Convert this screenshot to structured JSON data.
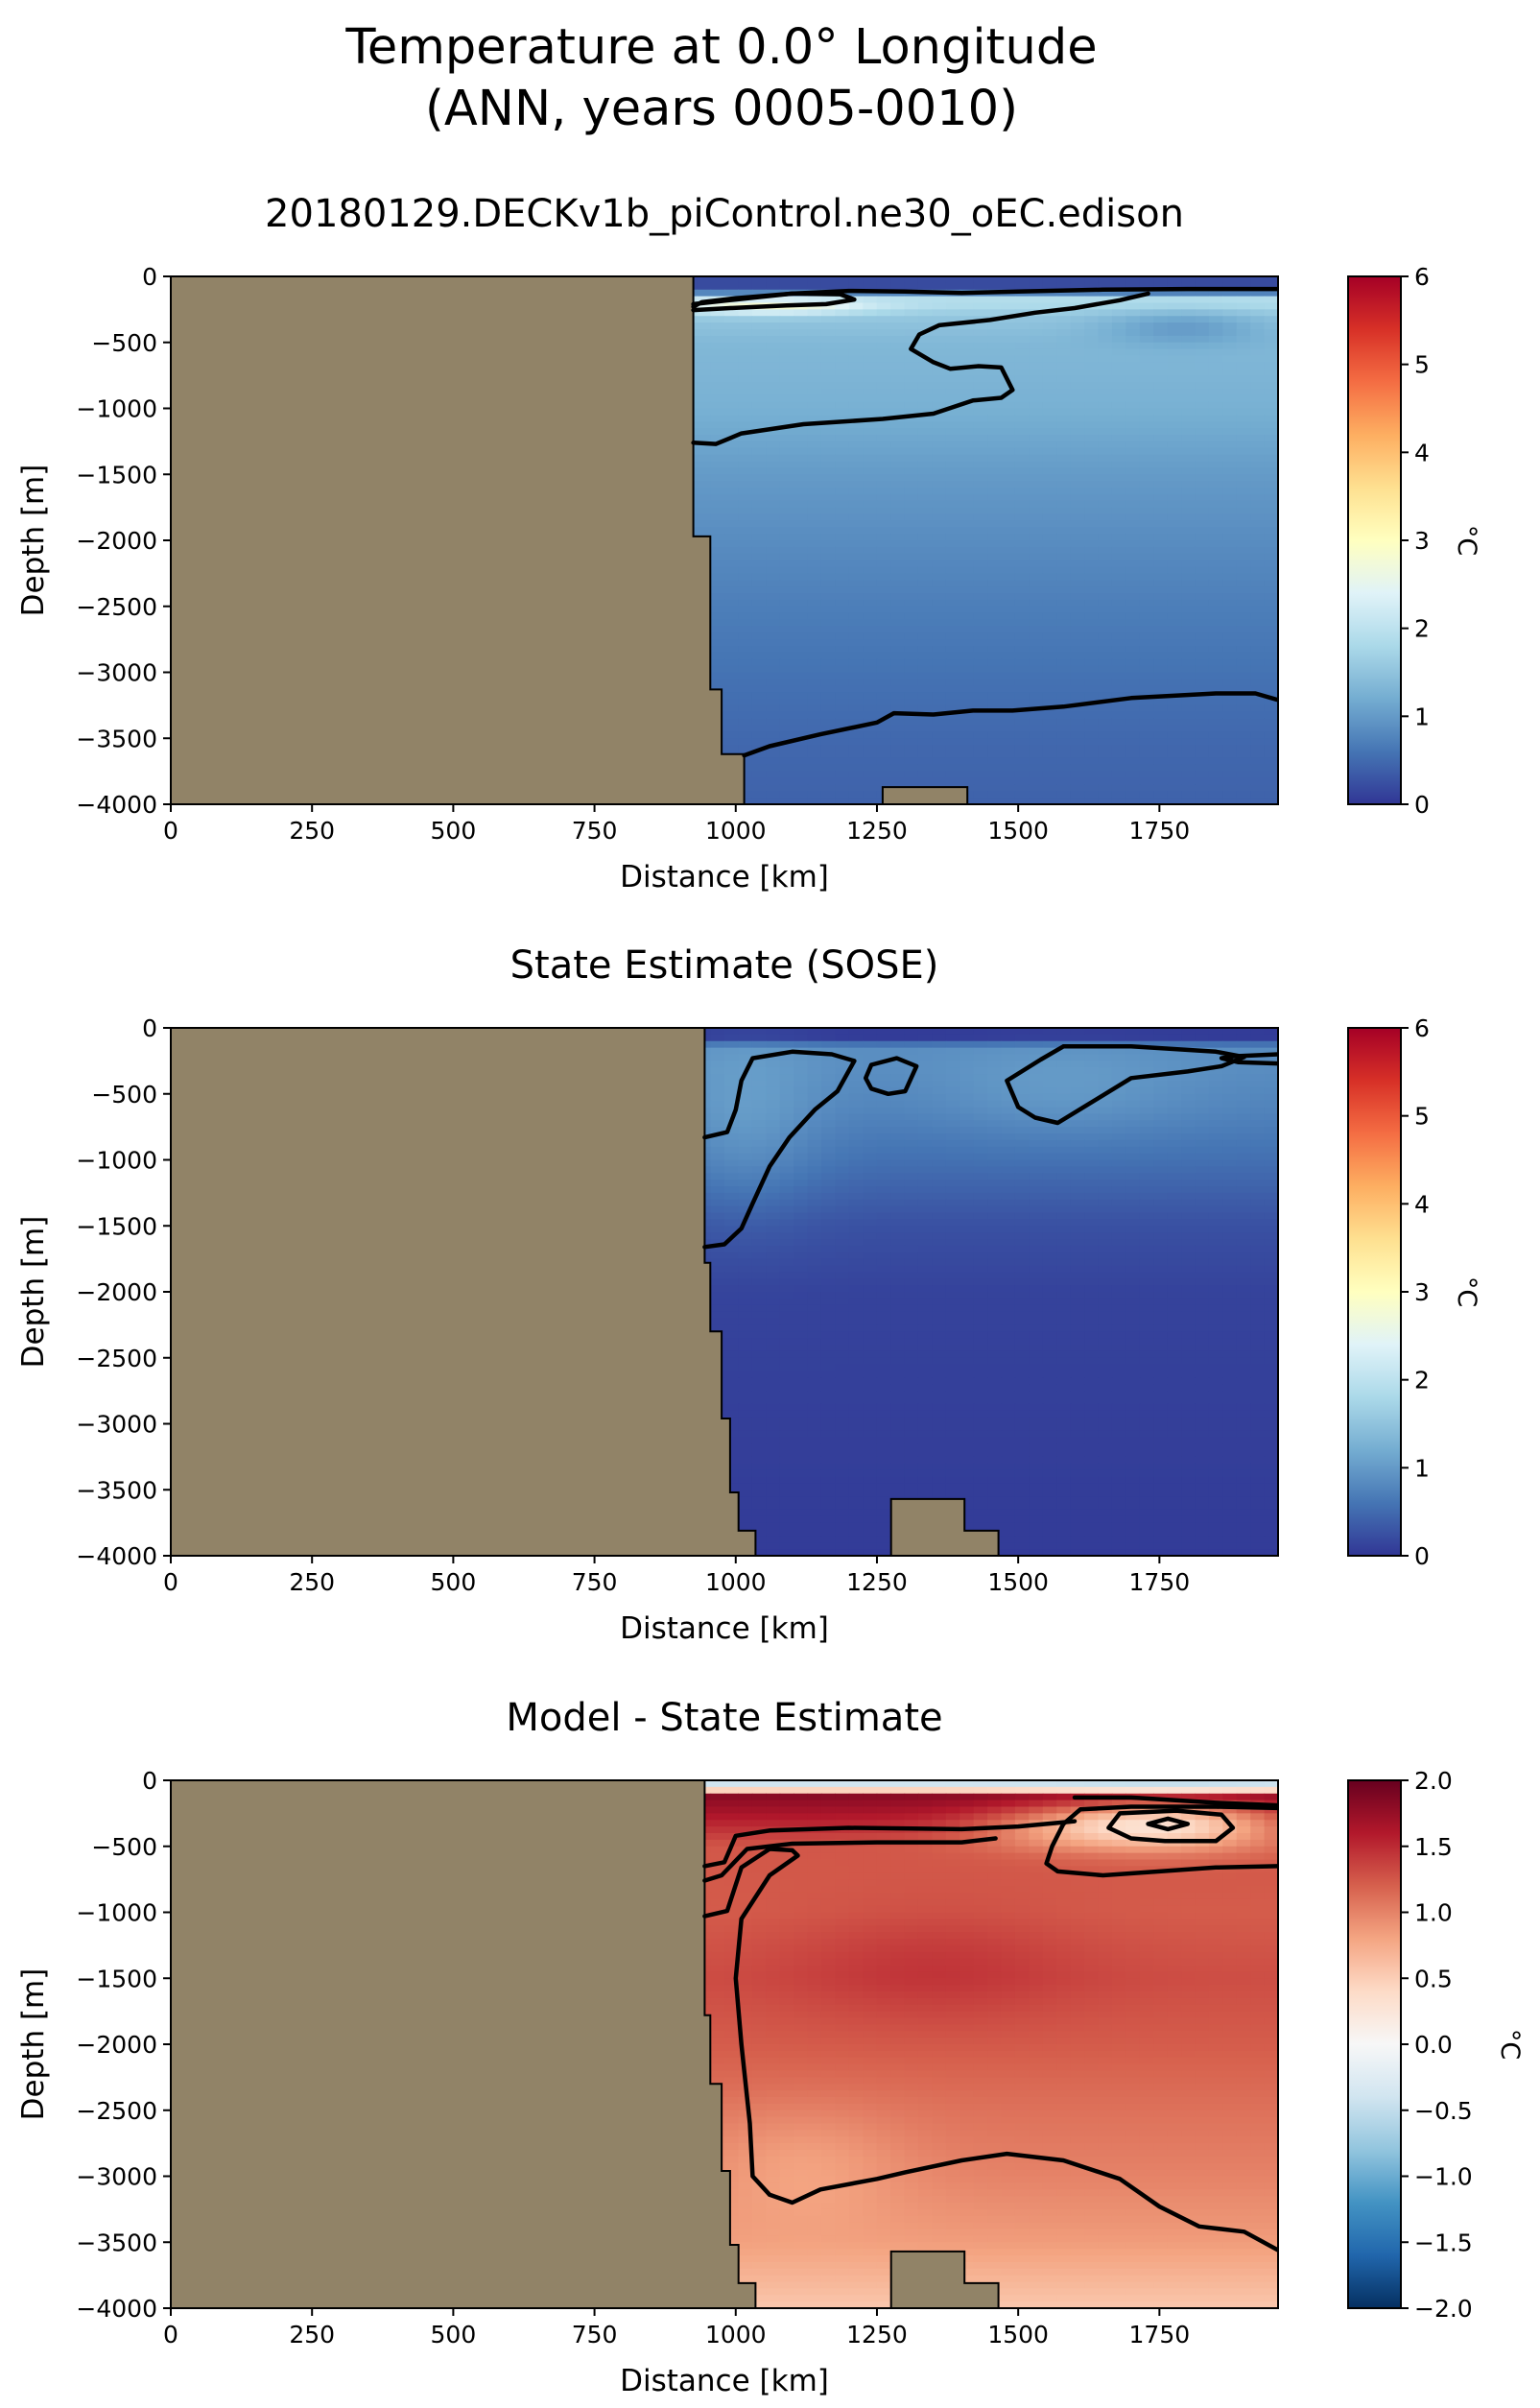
{
  "figure_title": [
    "Temperature at 0.0° Longitude",
    "(ANN, years 0005-0010)"
  ],
  "chart_data": [
    {
      "type": "heatmap",
      "title": "20180129.DECKv1b_piControl.ne30_oEC.edison",
      "xlabel": "Distance [km]",
      "ylabel": "Depth [m]",
      "xlim": [
        0,
        1960
      ],
      "ylim": [
        -4000,
        0
      ],
      "xticks": [
        0,
        250,
        500,
        750,
        1000,
        1250,
        1500,
        1750
      ],
      "yticks": [
        0,
        -500,
        -1000,
        -1500,
        -2000,
        -2500,
        -3000,
        -3500,
        -4000
      ],
      "colorbar": {
        "label": "°C",
        "min": 0,
        "max": 6,
        "ticks": [
          0,
          1,
          2,
          3,
          4,
          5,
          6
        ],
        "colormap": "RdYlBu_r"
      },
      "land_color": "#918367",
      "land": {
        "top": [
          [
            925,
            0
          ],
          [
            925,
            -1970
          ],
          [
            955,
            -1970
          ],
          [
            955,
            -3130
          ],
          [
            975,
            -3130
          ],
          [
            975,
            -3620
          ],
          [
            1015,
            -3620
          ],
          [
            1015,
            -4000
          ]
        ],
        "bottom": [
          [
            1260,
            -4000
          ],
          [
            1260,
            -3870
          ],
          [
            1410,
            -3870
          ],
          [
            1410,
            -4000
          ]
        ]
      },
      "field": {
        "base_profile": [
          [
            0,
            0.2
          ],
          [
            -100,
            0.2
          ],
          [
            -180,
            2.0
          ],
          [
            -300,
            1.55
          ],
          [
            -500,
            1.35
          ],
          [
            -1000,
            1.25
          ],
          [
            -1500,
            1.0
          ],
          [
            -2000,
            0.85
          ],
          [
            -2500,
            0.7
          ],
          [
            -3000,
            0.58
          ],
          [
            -3500,
            0.48
          ],
          [
            -4000,
            0.42
          ]
        ],
        "features": [
          {
            "x": 1790,
            "y": -380,
            "rx": 140,
            "ry": 130,
            "amp": -0.45
          },
          {
            "x": 1060,
            "y": -230,
            "rx": 170,
            "ry": 60,
            "amp": 1.0
          }
        ]
      },
      "contours": [
        [
          [
            925,
            -210
          ],
          [
            1000,
            -175
          ],
          [
            1100,
            -130
          ],
          [
            1200,
            -110
          ],
          [
            1300,
            -115
          ],
          [
            1400,
            -125
          ],
          [
            1500,
            -115
          ],
          [
            1650,
            -100
          ],
          [
            1800,
            -95
          ],
          [
            1960,
            -95
          ]
        ],
        [
          [
            925,
            -255
          ],
          [
            990,
            -240
          ],
          [
            1090,
            -220
          ],
          [
            1160,
            -210
          ],
          [
            1210,
            -175
          ],
          [
            1185,
            -135
          ],
          [
            1100,
            -130
          ],
          [
            1000,
            -165
          ],
          [
            940,
            -195
          ],
          [
            925,
            -230
          ]
        ],
        [
          [
            925,
            -1260
          ],
          [
            965,
            -1270
          ],
          [
            1010,
            -1190
          ],
          [
            1120,
            -1120
          ],
          [
            1260,
            -1080
          ],
          [
            1350,
            -1040
          ],
          [
            1420,
            -940
          ],
          [
            1470,
            -920
          ],
          [
            1490,
            -860
          ],
          [
            1470,
            -690
          ],
          [
            1430,
            -680
          ],
          [
            1380,
            -700
          ],
          [
            1350,
            -650
          ],
          [
            1310,
            -550
          ],
          [
            1325,
            -440
          ],
          [
            1360,
            -370
          ],
          [
            1450,
            -330
          ],
          [
            1530,
            -275
          ],
          [
            1600,
            -240
          ],
          [
            1680,
            -180
          ],
          [
            1730,
            -130
          ]
        ],
        [
          [
            1015,
            -3630
          ],
          [
            1060,
            -3560
          ],
          [
            1150,
            -3470
          ],
          [
            1250,
            -3380
          ],
          [
            1280,
            -3310
          ],
          [
            1350,
            -3320
          ],
          [
            1420,
            -3290
          ],
          [
            1490,
            -3290
          ],
          [
            1580,
            -3260
          ],
          [
            1700,
            -3195
          ],
          [
            1850,
            -3160
          ],
          [
            1920,
            -3160
          ],
          [
            1960,
            -3210
          ]
        ]
      ]
    },
    {
      "type": "heatmap",
      "title": "State Estimate (SOSE)",
      "xlabel": "Distance [km]",
      "ylabel": "Depth [m]",
      "xlim": [
        0,
        1960
      ],
      "ylim": [
        -4000,
        0
      ],
      "xticks": [
        0,
        250,
        500,
        750,
        1000,
        1250,
        1500,
        1750
      ],
      "yticks": [
        0,
        -500,
        -1000,
        -1500,
        -2000,
        -2500,
        -3000,
        -3500,
        -4000
      ],
      "colorbar": {
        "label": "°C",
        "min": 0,
        "max": 6,
        "ticks": [
          0,
          1,
          2,
          3,
          4,
          5,
          6
        ],
        "colormap": "RdYlBu_r"
      },
      "land_color": "#918367",
      "land": {
        "top": [
          [
            945,
            0
          ],
          [
            945,
            -1780
          ],
          [
            955,
            -1780
          ],
          [
            955,
            -2300
          ],
          [
            975,
            -2300
          ],
          [
            975,
            -2960
          ],
          [
            990,
            -2960
          ],
          [
            990,
            -3520
          ],
          [
            1005,
            -3520
          ],
          [
            1005,
            -3810
          ],
          [
            1035,
            -3810
          ],
          [
            1035,
            -4000
          ]
        ],
        "bottom": [
          [
            1275,
            -4000
          ],
          [
            1275,
            -3570
          ],
          [
            1405,
            -3570
          ],
          [
            1405,
            -3810
          ],
          [
            1465,
            -3810
          ],
          [
            1465,
            -4000
          ]
        ]
      },
      "field": {
        "base_profile": [
          [
            0,
            0.05
          ],
          [
            -80,
            0.05
          ],
          [
            -150,
            0.85
          ],
          [
            -300,
            0.85
          ],
          [
            -600,
            0.75
          ],
          [
            -1000,
            0.55
          ],
          [
            -1500,
            0.25
          ],
          [
            -2000,
            0.12
          ],
          [
            -4000,
            0.05
          ]
        ],
        "features": [
          {
            "x": 1020,
            "y": -800,
            "rx": 130,
            "ry": 700,
            "amp": 0.3
          },
          {
            "x": 1580,
            "y": -500,
            "rx": 220,
            "ry": 350,
            "amp": 0.2
          }
        ]
      },
      "contours": [
        [
          [
            945,
            -830
          ],
          [
            985,
            -790
          ],
          [
            1000,
            -620
          ],
          [
            1010,
            -400
          ],
          [
            1030,
            -230
          ],
          [
            1100,
            -180
          ],
          [
            1170,
            -200
          ],
          [
            1210,
            -250
          ],
          [
            1180,
            -480
          ],
          [
            1140,
            -620
          ],
          [
            1095,
            -830
          ],
          [
            1060,
            -1050
          ],
          [
            1030,
            -1330
          ],
          [
            1010,
            -1520
          ],
          [
            980,
            -1640
          ],
          [
            945,
            -1660
          ]
        ],
        [
          [
            1240,
            -280
          ],
          [
            1285,
            -230
          ],
          [
            1320,
            -290
          ],
          [
            1300,
            -480
          ],
          [
            1270,
            -500
          ],
          [
            1240,
            -460
          ],
          [
            1230,
            -380
          ],
          [
            1240,
            -280
          ]
        ],
        [
          [
            1580,
            -140
          ],
          [
            1700,
            -140
          ],
          [
            1850,
            -180
          ],
          [
            1900,
            -220
          ],
          [
            1860,
            -290
          ],
          [
            1800,
            -330
          ],
          [
            1700,
            -380
          ],
          [
            1620,
            -590
          ],
          [
            1570,
            -720
          ],
          [
            1530,
            -680
          ],
          [
            1500,
            -600
          ],
          [
            1480,
            -400
          ],
          [
            1540,
            -240
          ],
          [
            1580,
            -140
          ]
        ],
        [
          [
            1960,
            -200
          ],
          [
            1880,
            -215
          ],
          [
            1860,
            -230
          ],
          [
            1890,
            -260
          ],
          [
            1960,
            -270
          ]
        ]
      ]
    },
    {
      "type": "heatmap",
      "title": "Model - State Estimate",
      "xlabel": "Distance [km]",
      "ylabel": "Depth [m]",
      "xlim": [
        0,
        1960
      ],
      "ylim": [
        -4000,
        0
      ],
      "xticks": [
        0,
        250,
        500,
        750,
        1000,
        1250,
        1500,
        1750
      ],
      "yticks": [
        0,
        -500,
        -1000,
        -1500,
        -2000,
        -2500,
        -3000,
        -3500,
        -4000
      ],
      "colorbar": {
        "label": "°C",
        "min": -2.0,
        "max": 2.0,
        "ticks": [
          -2.0,
          -1.5,
          -1.0,
          -0.5,
          0.0,
          0.5,
          1.0,
          1.5,
          2.0
        ],
        "colormap": "RdBu_r"
      },
      "land_color": "#918367",
      "land": {
        "top": [
          [
            945,
            0
          ],
          [
            945,
            -1780
          ],
          [
            955,
            -1780
          ],
          [
            955,
            -2300
          ],
          [
            975,
            -2300
          ],
          [
            975,
            -2960
          ],
          [
            990,
            -2960
          ],
          [
            990,
            -3520
          ],
          [
            1005,
            -3520
          ],
          [
            1005,
            -3810
          ],
          [
            1035,
            -3810
          ],
          [
            1035,
            -4000
          ]
        ],
        "bottom": [
          [
            1275,
            -4000
          ],
          [
            1275,
            -3570
          ],
          [
            1405,
            -3570
          ],
          [
            1405,
            -3810
          ],
          [
            1465,
            -3810
          ],
          [
            1465,
            -4000
          ]
        ]
      },
      "field": {
        "base_profile": [
          [
            0,
            -0.4
          ],
          [
            -60,
            -0.4
          ],
          [
            -100,
            1.85
          ],
          [
            -250,
            1.65
          ],
          [
            -500,
            1.25
          ],
          [
            -1000,
            1.22
          ],
          [
            -1500,
            1.3
          ],
          [
            -2000,
            1.22
          ],
          [
            -2500,
            1.1
          ],
          [
            -3000,
            1.0
          ],
          [
            -3500,
            0.85
          ],
          [
            -4000,
            0.55
          ]
        ],
        "features": [
          {
            "x": 1760,
            "y": -330,
            "rx": 200,
            "ry": 180,
            "amp": -1.1
          },
          {
            "x": 1560,
            "y": -350,
            "rx": 170,
            "ry": 160,
            "amp": -0.35
          },
          {
            "x": 1350,
            "y": -1400,
            "rx": 260,
            "ry": 450,
            "amp": 0.15
          },
          {
            "x": 1120,
            "y": -2900,
            "rx": 180,
            "ry": 450,
            "amp": -0.2
          }
        ]
      },
      "contours": [
        [
          [
            945,
            -650
          ],
          [
            980,
            -620
          ],
          [
            1000,
            -420
          ],
          [
            1060,
            -380
          ],
          [
            1200,
            -360
          ],
          [
            1400,
            -370
          ],
          [
            1500,
            -350
          ],
          [
            1600,
            -310
          ]
        ],
        [
          [
            945,
            -760
          ],
          [
            975,
            -720
          ],
          [
            1020,
            -520
          ],
          [
            1100,
            -480
          ],
          [
            1250,
            -470
          ],
          [
            1400,
            -470
          ],
          [
            1460,
            -440
          ]
        ],
        [
          [
            945,
            -1030
          ],
          [
            985,
            -990
          ],
          [
            1010,
            -660
          ],
          [
            1060,
            -520
          ],
          [
            1100,
            -530
          ],
          [
            1110,
            -570
          ],
          [
            1060,
            -720
          ],
          [
            1010,
            -1050
          ],
          [
            1000,
            -1500
          ],
          [
            1010,
            -2000
          ],
          [
            1025,
            -2600
          ],
          [
            1030,
            -3000
          ],
          [
            1060,
            -3140
          ],
          [
            1100,
            -3200
          ],
          [
            1150,
            -3100
          ],
          [
            1250,
            -3020
          ],
          [
            1300,
            -2970
          ],
          [
            1400,
            -2880
          ],
          [
            1480,
            -2830
          ],
          [
            1580,
            -2880
          ],
          [
            1680,
            -3020
          ],
          [
            1750,
            -3230
          ],
          [
            1820,
            -3380
          ],
          [
            1900,
            -3420
          ],
          [
            1960,
            -3560
          ]
        ],
        [
          [
            1600,
            -130
          ],
          [
            1700,
            -130
          ],
          [
            1850,
            -170
          ],
          [
            1960,
            -190
          ]
        ],
        [
          [
            1960,
            -650
          ],
          [
            1850,
            -660
          ],
          [
            1750,
            -690
          ],
          [
            1650,
            -720
          ],
          [
            1570,
            -690
          ],
          [
            1550,
            -630
          ],
          [
            1560,
            -500
          ],
          [
            1580,
            -330
          ],
          [
            1610,
            -220
          ],
          [
            1700,
            -200
          ],
          [
            1850,
            -200
          ],
          [
            1960,
            -210
          ]
        ],
        [
          [
            1680,
            -250
          ],
          [
            1780,
            -230
          ],
          [
            1860,
            -260
          ],
          [
            1880,
            -360
          ],
          [
            1850,
            -460
          ],
          [
            1760,
            -460
          ],
          [
            1700,
            -440
          ],
          [
            1660,
            -360
          ],
          [
            1680,
            -250
          ]
        ],
        [
          [
            1730,
            -330
          ],
          [
            1765,
            -290
          ],
          [
            1800,
            -330
          ],
          [
            1765,
            -370
          ],
          [
            1730,
            -330
          ]
        ]
      ]
    }
  ]
}
